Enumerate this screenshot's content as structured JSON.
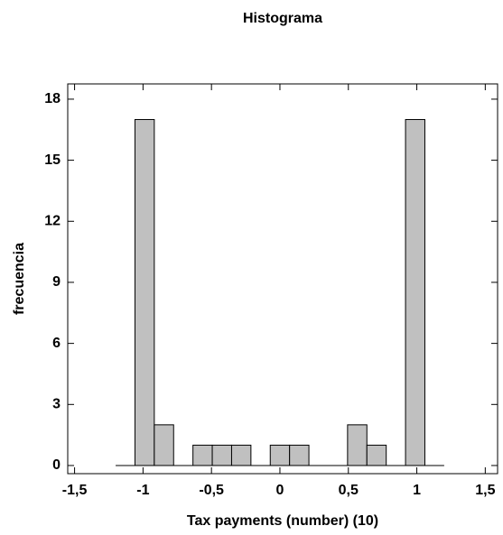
{
  "chart_data": {
    "type": "histogram",
    "title": "Histograma",
    "x_label": "Tax payments (number) (10)",
    "y_label": "frecuencia",
    "bins": [
      -1.2,
      -1.0588,
      -0.9176,
      -0.7765,
      -0.6353,
      -0.4941,
      -0.3529,
      -0.2118,
      -0.0706,
      0.0706,
      0.2118,
      0.3529,
      0.4941,
      0.6353,
      0.7765,
      0.9176,
      1.0588,
      1.2
    ],
    "values": [
      0,
      17,
      2,
      0,
      1,
      1,
      1,
      0,
      1,
      1,
      0,
      0,
      2,
      1,
      0,
      17,
      0
    ],
    "color": "#c0c0c0",
    "xlim": [
      -1.55,
      1.59
    ],
    "xticks": [
      {
        "value": -1.5,
        "label": "-1,5"
      },
      -1,
      {
        "value": -0.5,
        "label": "-0,5"
      },
      0,
      {
        "value": 0.5,
        "label": "0,5"
      },
      1,
      {
        "value": 1.5,
        "label": "1,5"
      }
    ],
    "ylim": [
      -0.4,
      18.75
    ],
    "yticks": [
      0,
      3,
      6,
      9,
      12,
      15,
      18
    ],
    "grid": false
  }
}
